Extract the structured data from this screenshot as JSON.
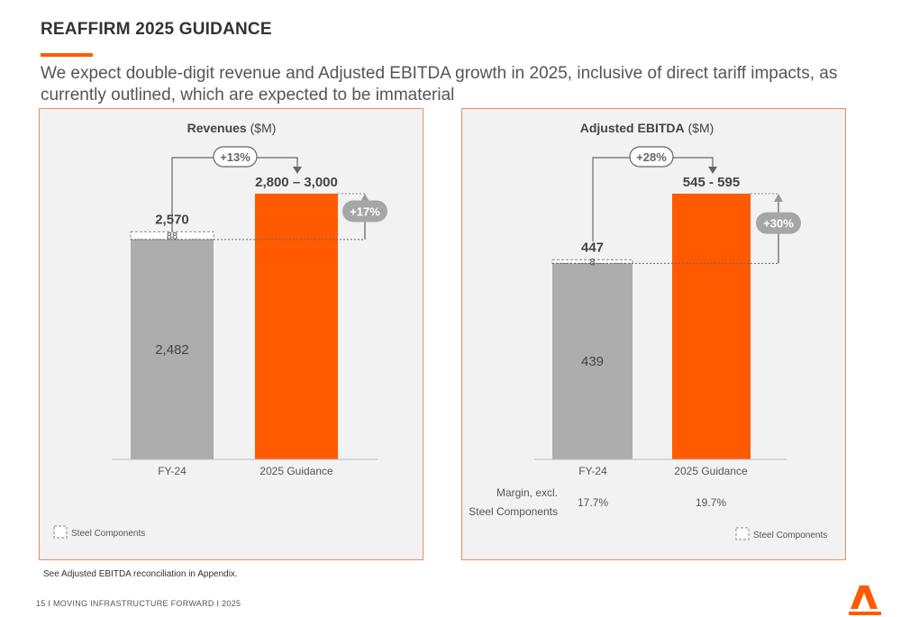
{
  "page": {
    "title": "REAFFIRM 2025 GUIDANCE",
    "subtitle": "We expect double-digit revenue and Adjusted EBITDA growth in 2025, inclusive of direct tariff impacts, as currently outlined, which are expected to be immaterial",
    "footnote": "See Adjusted EBITDA reconciliation in Appendix.",
    "footer": "15  I   MOVING INFRASTRUCTURE FORWARD   I   2025",
    "brand_color": "#ff5a00",
    "bar_gray": "#adadad"
  },
  "chart_data": [
    {
      "type": "bar",
      "title_bold": "Revenues",
      "title_unit": " ($M)",
      "categories": [
        "FY-24",
        "2025 Guidance"
      ],
      "fy24": {
        "base": 2482,
        "base_label": "2,482",
        "steel": 88,
        "steel_label": "88",
        "total": 2570,
        "total_label": "2,570"
      },
      "guidance": {
        "low": 2800,
        "high": 3000,
        "label": "2,800 – 3,000"
      },
      "growth_label": "+13%",
      "side_growth_label": "+17%",
      "legend": "Steel Components",
      "ylim": [
        0,
        3000
      ]
    },
    {
      "type": "bar",
      "title_bold": "Adjusted EBITDA",
      "title_unit": " ($M)",
      "categories": [
        "FY-24",
        "2025 Guidance"
      ],
      "fy24": {
        "base": 439,
        "base_label": "439",
        "steel": 8,
        "steel_label": "8",
        "total": 447,
        "total_label": "447"
      },
      "guidance": {
        "low": 545,
        "high": 595,
        "label": "545 - 595"
      },
      "growth_label": "+28%",
      "side_growth_label": "+30%",
      "legend": "Steel Components",
      "ylim": [
        0,
        595
      ],
      "margin_label_line1": "Margin, excl.",
      "margin_label_line2": "Steel Components",
      "margins": [
        "17.7%",
        "19.7%"
      ]
    }
  ]
}
